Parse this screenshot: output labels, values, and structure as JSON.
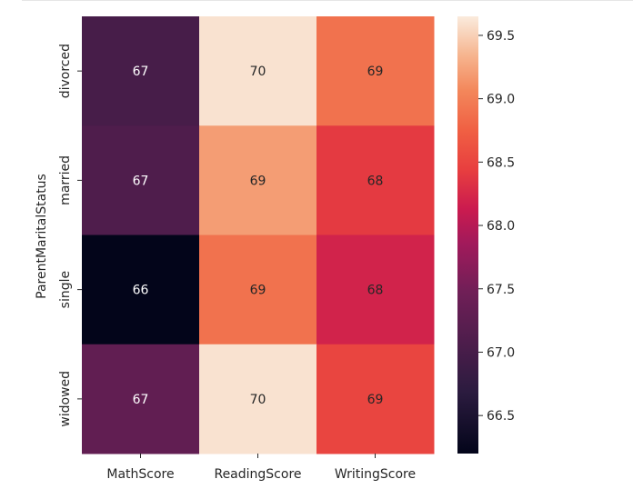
{
  "chart_data": {
    "type": "heatmap",
    "title": "",
    "xlabel": "",
    "ylabel": "ParentMaritalStatus",
    "x_categories": [
      "MathScore",
      "ReadingScore",
      "WritingScore"
    ],
    "y_categories": [
      "divorced",
      "married",
      "single",
      "widowed"
    ],
    "values": [
      [
        67.0,
        69.6,
        68.9
      ],
      [
        67.1,
        69.2,
        68.4
      ],
      [
        66.2,
        68.9,
        68.2
      ],
      [
        67.3,
        69.6,
        68.5
      ]
    ],
    "annotations": [
      [
        "67",
        "70",
        "69"
      ],
      [
        "67",
        "69",
        "68"
      ],
      [
        "66",
        "69",
        "68"
      ],
      [
        "67",
        "70",
        "69"
      ]
    ],
    "colormap": "rocket",
    "colorbar": {
      "range": [
        66.2,
        69.65
      ],
      "ticks": [
        66.5,
        67.0,
        67.5,
        68.0,
        68.5,
        69.0,
        69.5
      ],
      "tick_labels": [
        "66.5",
        "67.0",
        "67.5",
        "68.0",
        "68.5",
        "69.0",
        "69.5"
      ]
    },
    "annotation_colors": {
      "light": "#ffffff",
      "dark": "#262626"
    },
    "grid": false
  }
}
